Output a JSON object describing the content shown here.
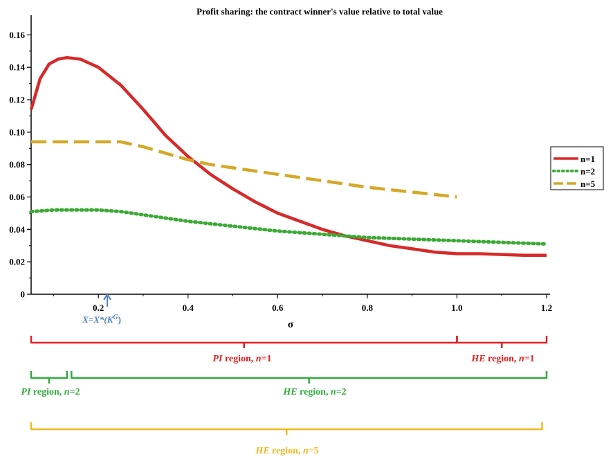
{
  "chart_data": {
    "type": "line",
    "title": "Profit sharing: the contract winner's value relative to total value",
    "xlabel": "σ",
    "ylabel": "",
    "xlim": [
      0.05,
      1.2
    ],
    "ylim": [
      0,
      0.17
    ],
    "xticks": [
      "0.2",
      "0.4",
      "0.6",
      "0.8",
      "1.0",
      "1.2"
    ],
    "yticks": [
      "0",
      "0.02",
      "0.04",
      "0.06",
      "0.08",
      "0.10",
      "0.12",
      "0.14",
      "0.16"
    ],
    "legend_position": "right",
    "series": [
      {
        "name": "n=1",
        "color": "#d62a2a",
        "style": "solid",
        "points": [
          [
            0.05,
            0.114
          ],
          [
            0.07,
            0.133
          ],
          [
            0.09,
            0.142
          ],
          [
            0.11,
            0.145
          ],
          [
            0.13,
            0.146
          ],
          [
            0.16,
            0.145
          ],
          [
            0.2,
            0.14
          ],
          [
            0.25,
            0.129
          ],
          [
            0.3,
            0.114
          ],
          [
            0.35,
            0.098
          ],
          [
            0.4,
            0.085
          ],
          [
            0.45,
            0.074
          ],
          [
            0.5,
            0.065
          ],
          [
            0.55,
            0.057
          ],
          [
            0.6,
            0.05
          ],
          [
            0.65,
            0.045
          ],
          [
            0.7,
            0.04
          ],
          [
            0.75,
            0.036
          ],
          [
            0.8,
            0.033
          ],
          [
            0.85,
            0.03
          ],
          [
            0.9,
            0.028
          ],
          [
            0.95,
            0.026
          ],
          [
            1.0,
            0.025
          ],
          [
            1.05,
            0.025
          ],
          [
            1.1,
            0.0245
          ],
          [
            1.15,
            0.024
          ],
          [
            1.2,
            0.024
          ]
        ]
      },
      {
        "name": "n=2",
        "color": "#3aaa35",
        "style": "dotted",
        "points": [
          [
            0.05,
            0.051
          ],
          [
            0.1,
            0.052
          ],
          [
            0.15,
            0.052
          ],
          [
            0.2,
            0.052
          ],
          [
            0.25,
            0.051
          ],
          [
            0.3,
            0.049
          ],
          [
            0.35,
            0.047
          ],
          [
            0.4,
            0.045
          ],
          [
            0.5,
            0.042
          ],
          [
            0.6,
            0.039
          ],
          [
            0.7,
            0.037
          ],
          [
            0.8,
            0.035
          ],
          [
            0.9,
            0.034
          ],
          [
            1.0,
            0.033
          ],
          [
            1.1,
            0.032
          ],
          [
            1.2,
            0.031
          ]
        ]
      },
      {
        "name": "n=5",
        "color": "#d4a829",
        "style": "dashed",
        "points": [
          [
            0.05,
            0.094
          ],
          [
            0.1,
            0.094
          ],
          [
            0.15,
            0.094
          ],
          [
            0.2,
            0.094
          ],
          [
            0.25,
            0.094
          ],
          [
            0.3,
            0.091
          ],
          [
            0.35,
            0.087
          ],
          [
            0.4,
            0.083
          ],
          [
            0.45,
            0.08
          ],
          [
            0.5,
            0.078
          ],
          [
            0.6,
            0.074
          ],
          [
            0.7,
            0.07
          ],
          [
            0.8,
            0.066
          ],
          [
            0.9,
            0.063
          ],
          [
            1.0,
            0.06
          ]
        ]
      }
    ],
    "annotations": {
      "marker": {
        "x": 0.22,
        "label": "X=X*(K",
        "label_sup": "G",
        "label_tail": ")",
        "color": "#4a7fc1"
      },
      "regions": [
        {
          "from": 0.05,
          "to": 1.0,
          "color": "#e02020",
          "label_italic": "PI",
          "label_rest": " region, ",
          "label_n": "n",
          "label_eq": "=1"
        },
        {
          "from": 1.0,
          "to": 1.2,
          "color": "#e02020",
          "label_italic": "HE",
          "label_rest": " region, ",
          "label_n": "n",
          "label_eq": "=1"
        },
        {
          "from": 0.05,
          "to": 0.13,
          "color": "#2fae3c",
          "label_italic": "PI",
          "label_rest": " region, ",
          "label_n": "n",
          "label_eq": "=2"
        },
        {
          "from": 0.14,
          "to": 1.2,
          "color": "#2fae3c",
          "label_italic": "HE",
          "label_rest": " region, ",
          "label_n": "n",
          "label_eq": "=2"
        },
        {
          "from": 0.05,
          "to": 1.19,
          "color": "#f2b820",
          "label_italic": "HE",
          "label_rest": " region, ",
          "label_n": "n",
          "label_eq": "=5"
        }
      ]
    }
  }
}
